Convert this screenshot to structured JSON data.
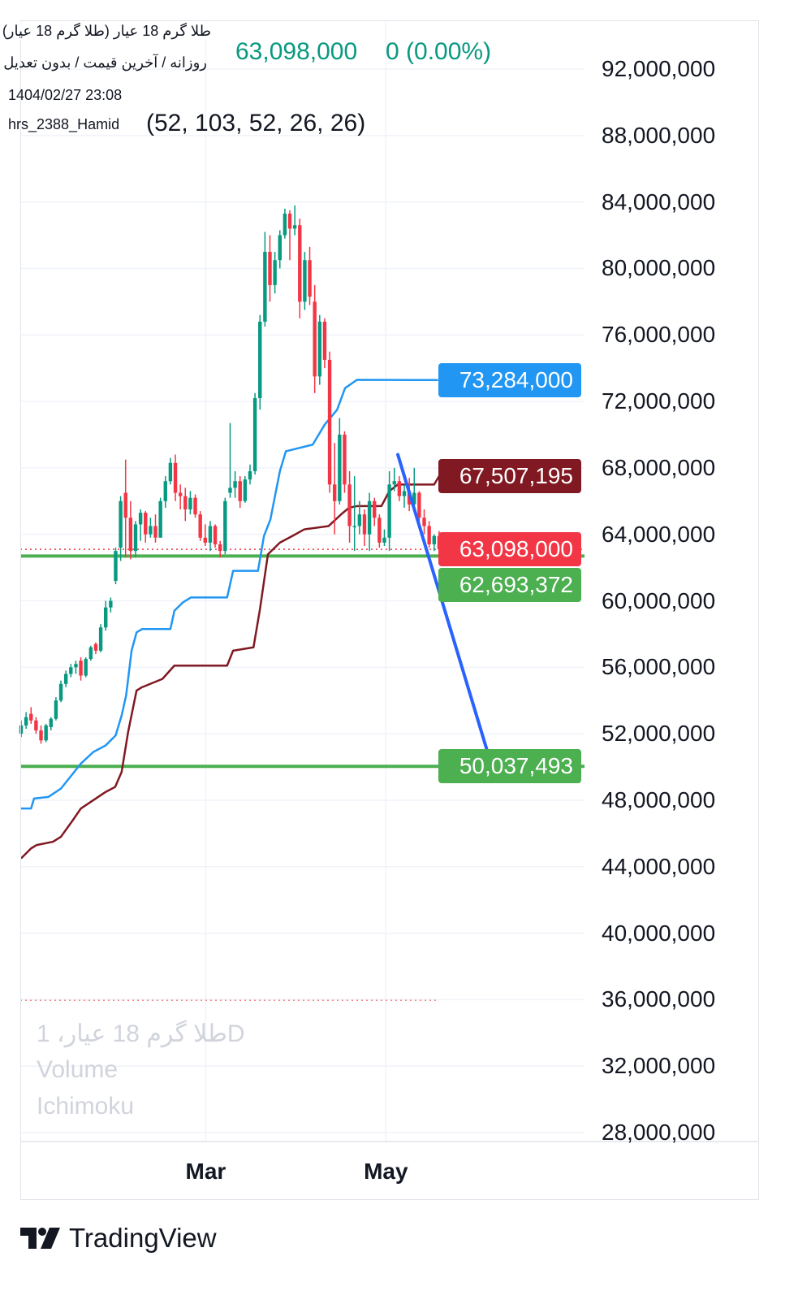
{
  "legend": {
    "title": "طلا گرم 18 عیار (طلا گرم 18 عیار)",
    "subtitle": "روزانه / آخرین قیمت / بدون تعدیل",
    "datetime": "1404/02/27 23:08",
    "author": "hrs_2388_Hamid",
    "indicator_params": "(52, 103, 52, 26, 26)",
    "last_price": "63,098,000",
    "change": "0 (0.00%)",
    "ghost_symbol": "طلا گرم 18 عیار، 1D",
    "ghost_volume": "Volume",
    "ghost_indicator": "Ichimoku"
  },
  "colors": {
    "up": "#089981",
    "down": "#F23645",
    "conversion": "#2196F3",
    "base": "#801922",
    "support": "#4CAF50",
    "trendline": "#2962FF"
  },
  "badges": [
    {
      "label": "73,284,000",
      "value": 73.284,
      "color": "#2196F3"
    },
    {
      "label": "67,507,195",
      "value": 67.507,
      "color": "#801922"
    },
    {
      "label": "63,098,000",
      "value": 63.098,
      "color": "#F23645"
    },
    {
      "label": "62,693,372",
      "value": 62.693,
      "color": "#4CAF50"
    },
    {
      "label": "50,037,493",
      "value": 50.037,
      "color": "#4CAF50"
    }
  ],
  "branding": {
    "name": "TradingView",
    "icon": "tradingview-logo-icon"
  },
  "chart_data": {
    "type": "candlestick",
    "unit": "price in millions",
    "ylim": [
      28,
      92
    ],
    "y_ticks": [
      "92,000,000",
      "88,000,000",
      "84,000,000",
      "80,000,000",
      "76,000,000",
      "72,000,000",
      "68,000,000",
      "64,000,000",
      "60,000,000",
      "56,000,000",
      "52,000,000",
      "48,000,000",
      "44,000,000",
      "40,000,000",
      "36,000,000",
      "32,000,000",
      "28,000,000"
    ],
    "x_ticks": [
      {
        "label": "Mar",
        "bar": 37.1
      },
      {
        "label": "May",
        "bar": 73.3
      }
    ],
    "grid": true,
    "ohlc": [
      [
        52.0,
        52.8,
        51.8,
        52.5
      ],
      [
        52.5,
        53.3,
        52.3,
        53.0
      ],
      [
        53.2,
        53.6,
        52.6,
        52.8
      ],
      [
        52.8,
        53.0,
        52.0,
        52.2
      ],
      [
        52.2,
        52.5,
        51.4,
        51.6
      ],
      [
        51.6,
        52.6,
        51.5,
        52.5
      ],
      [
        52.4,
        53.0,
        52.2,
        52.9
      ],
      [
        52.9,
        54.2,
        52.8,
        54.0
      ],
      [
        54.0,
        55.2,
        53.9,
        55.0
      ],
      [
        55.0,
        55.8,
        54.8,
        55.6
      ],
      [
        55.6,
        56.2,
        55.4,
        56.0
      ],
      [
        56.0,
        56.4,
        55.6,
        56.2
      ],
      [
        56.4,
        56.6,
        55.2,
        55.5
      ],
      [
        55.5,
        56.6,
        55.4,
        56.5
      ],
      [
        56.5,
        57.3,
        56.4,
        57.2
      ],
      [
        57.4,
        57.5,
        56.8,
        57.0
      ],
      [
        57.0,
        58.6,
        56.9,
        58.4
      ],
      [
        58.4,
        60.0,
        58.2,
        59.6
      ],
      [
        59.6,
        60.2,
        59.3,
        60.0
      ],
      [
        61.2,
        63.2,
        61.0,
        63.0
      ],
      [
        63.2,
        66.3,
        62.4,
        66.0
      ],
      [
        66.5,
        68.5,
        62.6,
        65.0
      ],
      [
        65.0,
        66.0,
        62.5,
        63.0
      ],
      [
        63.0,
        64.8,
        62.6,
        64.6
      ],
      [
        64.6,
        65.5,
        63.6,
        65.3
      ],
      [
        65.3,
        65.4,
        63.5,
        64.0
      ],
      [
        64.0,
        65.0,
        63.8,
        64.5
      ],
      [
        64.5,
        65.2,
        63.5,
        63.8
      ],
      [
        63.8,
        66.2,
        63.8,
        66.0
      ],
      [
        66.0,
        67.5,
        65.6,
        67.2
      ],
      [
        67.2,
        68.6,
        67.0,
        68.3
      ],
      [
        68.3,
        68.8,
        66.0,
        66.5
      ],
      [
        66.5,
        67.0,
        65.5,
        66.3
      ],
      [
        66.3,
        66.8,
        64.8,
        65.5
      ],
      [
        65.5,
        66.6,
        65.2,
        66.2
      ],
      [
        66.2,
        66.4,
        65.0,
        65.2
      ],
      [
        65.2,
        65.4,
        63.6,
        63.8
      ],
      [
        63.8,
        64.6,
        63.3,
        63.5
      ],
      [
        63.5,
        64.8,
        63.0,
        64.5
      ],
      [
        64.5,
        64.6,
        63.2,
        63.4
      ],
      [
        63.4,
        63.6,
        62.6,
        63.0
      ],
      [
        63.0,
        66.2,
        62.8,
        66.0
      ],
      [
        66.5,
        70.7,
        66.2,
        66.8
      ],
      [
        66.8,
        67.8,
        66.2,
        67.2
      ],
      [
        67.2,
        67.5,
        65.6,
        66.0
      ],
      [
        66.0,
        67.5,
        65.9,
        67.3
      ],
      [
        67.3,
        68.2,
        67.0,
        67.8
      ],
      [
        67.8,
        72.5,
        67.6,
        72.2
      ],
      [
        72.2,
        77.2,
        71.5,
        76.8
      ],
      [
        76.8,
        82.2,
        76.5,
        81.0
      ],
      [
        81.0,
        82.0,
        78.0,
        79.0
      ],
      [
        79.0,
        81.0,
        78.5,
        80.5
      ],
      [
        80.5,
        82.3,
        80.0,
        82.0
      ],
      [
        82.0,
        83.6,
        81.8,
        83.3
      ],
      [
        83.3,
        83.5,
        80.5,
        82.4
      ],
      [
        82.4,
        83.8,
        82.0,
        82.6
      ],
      [
        82.6,
        83.0,
        77.0,
        78.0
      ],
      [
        78.0,
        81.0,
        77.5,
        80.5
      ],
      [
        80.5,
        81.3,
        77.8,
        78.3
      ],
      [
        78.0,
        79.0,
        72.5,
        73.5
      ],
      [
        73.5,
        77.2,
        73.0,
        76.8
      ],
      [
        76.8,
        77.0,
        74.0,
        74.5
      ],
      [
        74.5,
        75.0,
        66.5,
        67.0
      ],
      [
        67.0,
        69.5,
        64.0,
        66.0
      ],
      [
        66.0,
        71.0,
        65.8,
        70.0
      ],
      [
        70.0,
        70.2,
        66.5,
        67.0
      ],
      [
        67.0,
        67.8,
        63.5,
        64.5
      ],
      [
        64.5,
        67.5,
        63.0,
        64.5
      ],
      [
        64.5,
        66.0,
        64.0,
        65.2
      ],
      [
        65.2,
        65.5,
        63.3,
        64.0
      ],
      [
        64.0,
        66.5,
        63.0,
        66.0
      ],
      [
        66.0,
        66.2,
        64.5,
        65.0
      ],
      [
        65.0,
        65.2,
        63.2,
        63.5
      ],
      [
        63.5,
        64.3,
        63.3,
        63.8
      ],
      [
        63.8,
        67.8,
        63.0,
        67.0
      ],
      [
        67.0,
        68.0,
        66.6,
        67.2
      ],
      [
        67.2,
        67.5,
        66.0,
        66.3
      ],
      [
        66.3,
        67.0,
        65.6,
        66.6
      ],
      [
        66.6,
        67.4,
        65.4,
        65.8
      ],
      [
        65.8,
        68.0,
        65.4,
        66.5
      ],
      [
        66.5,
        66.6,
        64.5,
        65.0
      ],
      [
        65.0,
        65.5,
        64.0,
        64.5
      ],
      [
        64.5,
        64.8,
        63.2,
        63.4
      ],
      [
        63.4,
        64.0,
        63.0,
        63.9
      ],
      [
        63.9,
        64.2,
        62.9,
        63.098
      ]
    ],
    "conversion_line": [
      [
        0,
        47.5
      ],
      [
        2,
        47.5
      ],
      [
        2.6,
        48.1
      ],
      [
        5.5,
        48.2
      ],
      [
        8,
        48.7
      ],
      [
        9.6,
        49.3
      ],
      [
        12,
        50.2
      ],
      [
        14.5,
        50.9
      ],
      [
        17,
        51.3
      ],
      [
        19,
        51.9
      ],
      [
        20.2,
        53.1
      ],
      [
        21.1,
        54.3
      ],
      [
        22.2,
        57.0
      ],
      [
        23.2,
        58.1
      ],
      [
        24.3,
        58.3
      ],
      [
        30,
        58.3
      ],
      [
        30.8,
        59.4
      ],
      [
        32.5,
        59.9
      ],
      [
        34.1,
        60.2
      ],
      [
        41.4,
        60.2
      ],
      [
        42.6,
        61.8
      ],
      [
        47.6,
        61.8
      ],
      [
        48.8,
        63.9
      ],
      [
        50.1,
        64.9
      ],
      [
        52,
        67.8
      ],
      [
        53.2,
        69.0
      ],
      [
        58.6,
        69.4
      ],
      [
        61,
        70.6
      ],
      [
        63.5,
        71.5
      ],
      [
        65.1,
        72.8
      ],
      [
        67.5,
        73.3
      ],
      [
        83.8,
        73.284
      ]
    ],
    "base_line": [
      [
        0,
        44.5
      ],
      [
        2,
        45.1
      ],
      [
        3.1,
        45.3
      ],
      [
        6.4,
        45.5
      ],
      [
        8,
        45.8
      ],
      [
        10.4,
        46.8
      ],
      [
        12,
        47.5
      ],
      [
        14.5,
        48.0
      ],
      [
        17,
        48.5
      ],
      [
        18.9,
        48.8
      ],
      [
        20.2,
        49.7
      ],
      [
        21.5,
        52.1
      ],
      [
        23.2,
        54.6
      ],
      [
        24.3,
        54.8
      ],
      [
        28.4,
        55.3
      ],
      [
        30.8,
        56.1
      ],
      [
        41.4,
        56.1
      ],
      [
        42.6,
        57.0
      ],
      [
        46.7,
        57.2
      ],
      [
        48,
        59.5
      ],
      [
        49.6,
        62.8
      ],
      [
        52,
        63.5
      ],
      [
        54.5,
        63.9
      ],
      [
        56.9,
        64.3
      ],
      [
        61.8,
        64.5
      ],
      [
        64.3,
        65.2
      ],
      [
        65.9,
        65.6
      ],
      [
        67.5,
        65.7
      ],
      [
        72.4,
        65.7
      ],
      [
        74,
        66.6
      ],
      [
        75.7,
        67.0
      ],
      [
        83,
        67.0
      ],
      [
        84,
        67.507
      ]
    ],
    "horizontal_lines": [
      {
        "value": 62.693,
        "style": "solid",
        "color": "#4CAF50"
      },
      {
        "value": 50.037,
        "style": "solid",
        "color": "#4CAF50"
      },
      {
        "value": 63.098,
        "style": "dotted",
        "color": "#F23645"
      },
      {
        "value": 35.96,
        "style": "dotted",
        "color": "#F23645",
        "end_bar": 84
      }
    ],
    "trendline": {
      "from": [
        75.7,
        68.8
      ],
      "to": [
        94.6,
        50.037
      ],
      "color": "#2962FF"
    }
  }
}
